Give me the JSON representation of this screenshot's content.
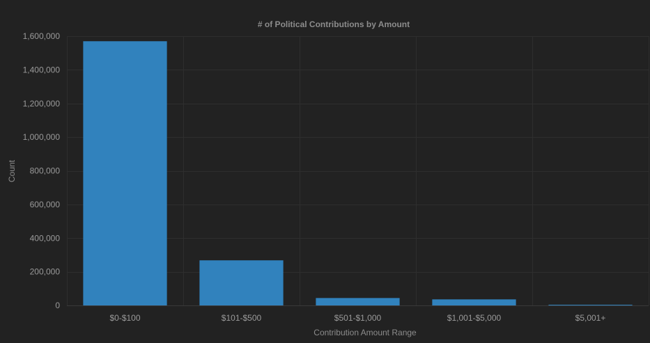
{
  "chart_data": {
    "type": "bar",
    "title": "# of Political Contributions by Amount",
    "xlabel": "Contribution Amount Range",
    "ylabel": "Count",
    "categories": [
      "$0-$100",
      "$101-$500",
      "$501-$1,000",
      "$1,001-$5,000",
      "$5,001+"
    ],
    "values": [
      1570000,
      268000,
      44000,
      36000,
      3000
    ],
    "ylim": [
      0,
      1600000
    ],
    "yticks": [
      0,
      200000,
      400000,
      600000,
      800000,
      1000000,
      1200000,
      1400000,
      1600000
    ],
    "ytick_labels": [
      "0",
      "200,000",
      "400,000",
      "600,000",
      "800,000",
      "1,000,000",
      "1,200,000",
      "1,400,000",
      "1,600,000"
    ],
    "grid": true,
    "legend": "none",
    "colors": {
      "background": "#222222",
      "bar": "#3182bd",
      "grid": "#2e2e2e",
      "text": "#9a9a9a",
      "title": "#8c8c8c"
    }
  }
}
